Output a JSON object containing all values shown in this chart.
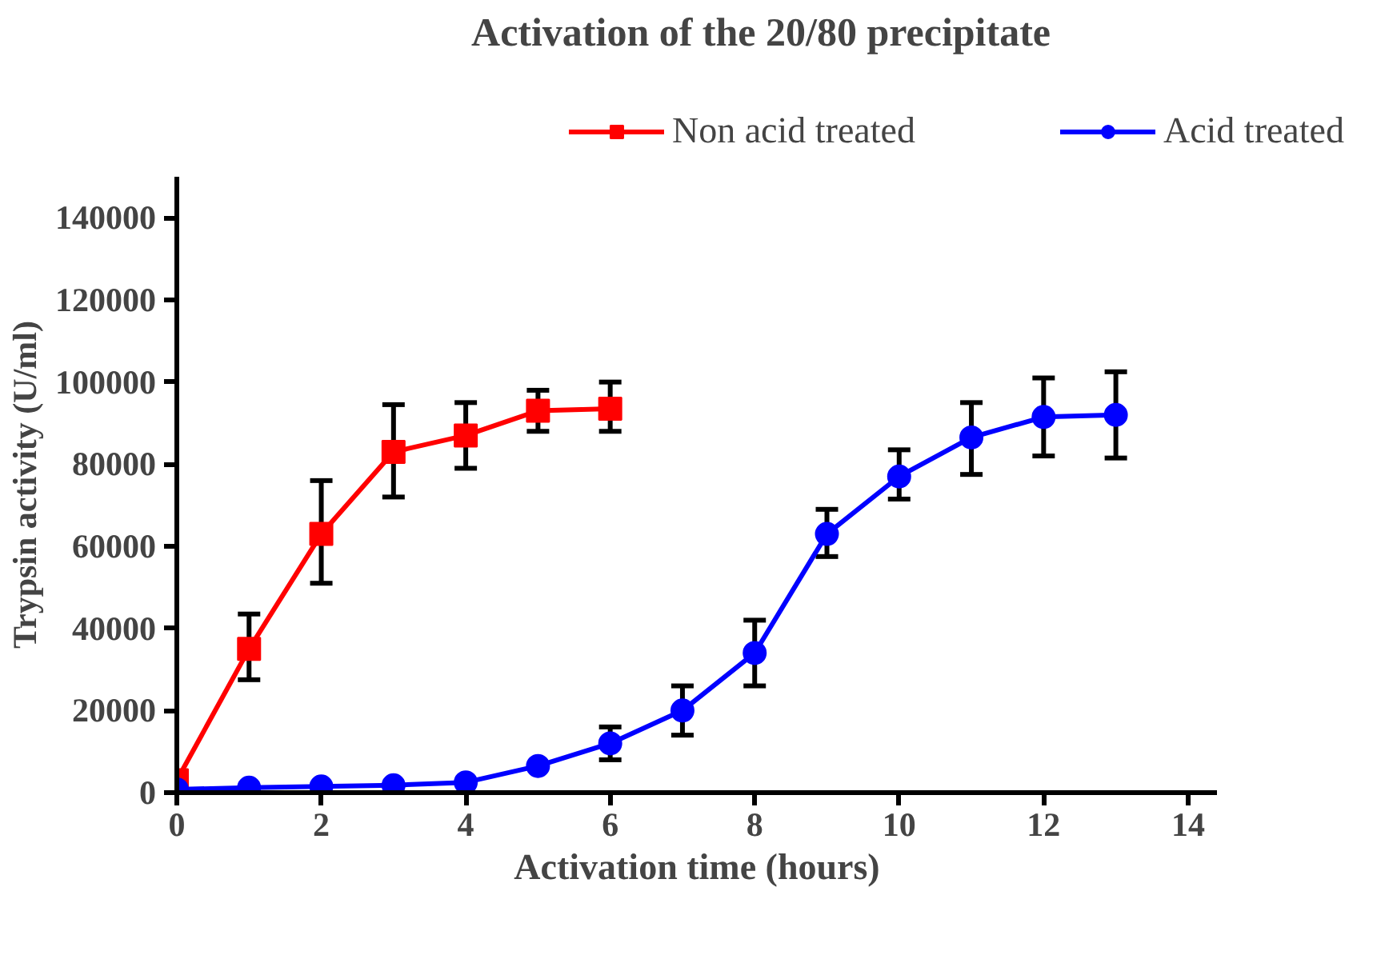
{
  "chart_data": {
    "type": "line",
    "title": "Activation of the 20/80 precipitate",
    "xlabel": "Activation time (hours)",
    "ylabel": "Trypsin activity (U/ml)",
    "xlim": [
      0,
      14.4
    ],
    "xticks": [
      0,
      2,
      4,
      6,
      8,
      10,
      12,
      14
    ],
    "ylim": [
      0,
      150000
    ],
    "yticks": [
      0,
      20000,
      40000,
      60000,
      80000,
      100000,
      120000,
      140000
    ],
    "grid": false,
    "legend": "top",
    "line_style": "solid",
    "series": [
      {
        "name": "Non acid treated",
        "color": "#ff0000",
        "marker": "square",
        "x": [
          0,
          1,
          2,
          3,
          4,
          5,
          6
        ],
        "values": [
          3000,
          35000,
          63000,
          83000,
          87000,
          93000,
          93500
        ],
        "errors": [
          null,
          [
            27500,
            43500
          ],
          [
            51000,
            76000
          ],
          [
            72000,
            94500
          ],
          [
            79000,
            95000
          ],
          [
            88000,
            98000
          ],
          [
            88000,
            100000
          ]
        ]
      },
      {
        "name": "Acid treated",
        "color": "#0000ff",
        "marker": "circle",
        "x": [
          0,
          1,
          2,
          3,
          4,
          5,
          6,
          7,
          8,
          9,
          10,
          11,
          12,
          13
        ],
        "values": [
          800,
          1200,
          1500,
          1800,
          2500,
          6500,
          12000,
          20000,
          34000,
          63000,
          77000,
          86500,
          91500,
          92000
        ],
        "errors": [
          null,
          null,
          null,
          null,
          null,
          null,
          [
            8000,
            16000
          ],
          [
            14000,
            26000
          ],
          [
            26000,
            42000
          ],
          [
            57500,
            69000
          ],
          [
            71500,
            83500
          ],
          [
            77500,
            95000
          ],
          [
            82000,
            101000
          ],
          [
            81500,
            102500
          ]
        ]
      }
    ]
  }
}
